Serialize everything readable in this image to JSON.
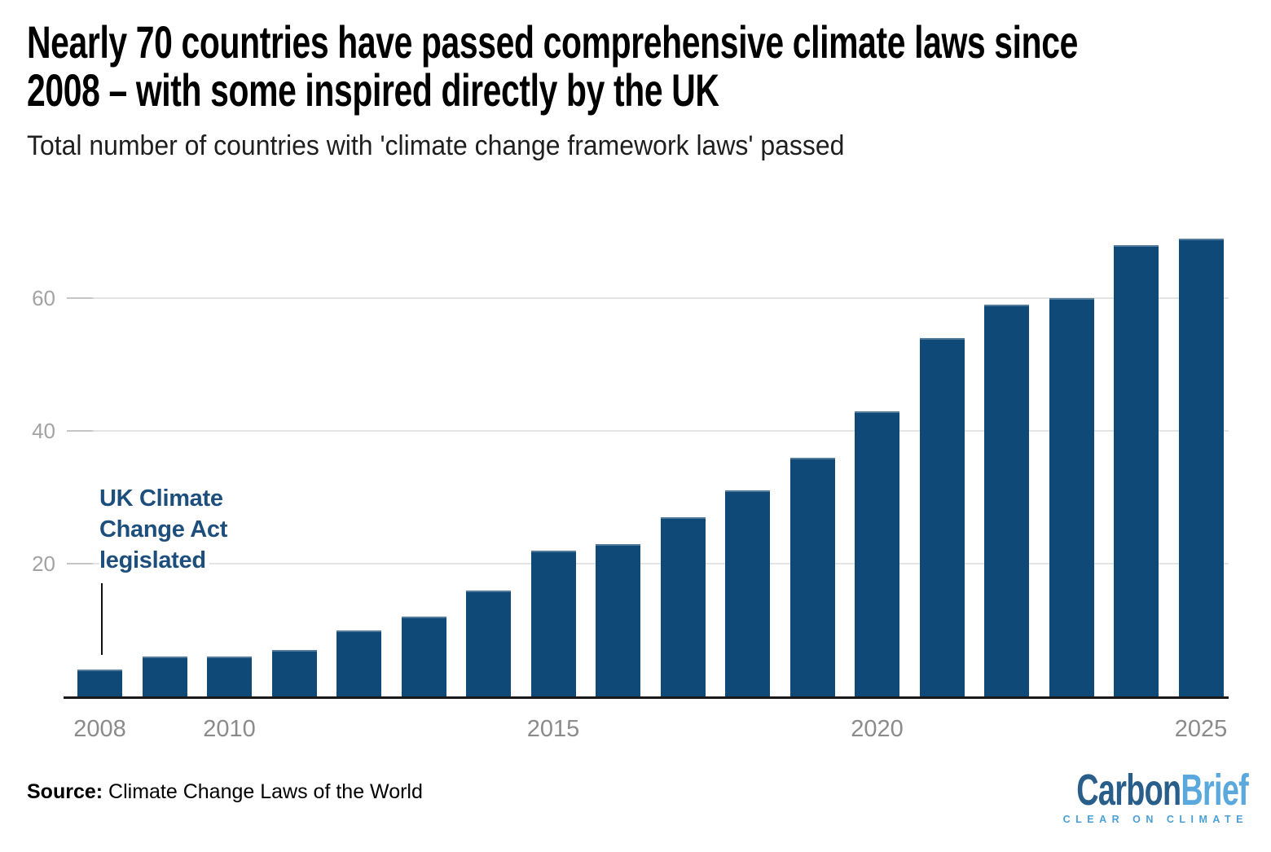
{
  "header": {
    "title": "Nearly 70 countries have passed comprehensive climate laws since 2008 – with some inspired directly by the UK",
    "title_lines": [
      "Nearly 70 countries have passed comprehensive climate laws since",
      "2008 – with some inspired directly by the UK"
    ],
    "subtitle": "Total number of countries with 'climate change framework laws' passed"
  },
  "chart_data": {
    "type": "bar",
    "title": "Total number of countries with 'climate change framework laws' passed",
    "categories": [
      "2008",
      "2009",
      "2010",
      "2011",
      "2012",
      "2013",
      "2014",
      "2015",
      "2016",
      "2017",
      "2018",
      "2019",
      "2020",
      "2021",
      "2022",
      "2023",
      "2024",
      "2025"
    ],
    "values": [
      4,
      6,
      6,
      7,
      10,
      12,
      16,
      22,
      23,
      27,
      31,
      36,
      43,
      54,
      59,
      60,
      68,
      69
    ],
    "xlabel": "",
    "ylabel": "",
    "ylim": [
      0,
      70
    ],
    "yticks": [
      20,
      40,
      60
    ],
    "xtick_labels": [
      "2008",
      "2010",
      "2015",
      "2020",
      "2025"
    ],
    "grid": true,
    "legend": "none",
    "bar_color": "#0f4978",
    "gridline_color": "#e4e4e4",
    "axis_line_color": "#1a1a1a",
    "ytick_label_color": "#a3a3a3",
    "xtick_label_color": "#8b8b8b",
    "annotation": {
      "lines": [
        "UK Climate",
        "Change Act",
        "legislated"
      ],
      "text": "UK Climate Change Act legislated",
      "color": "#1d4e7c",
      "target_year": "2008"
    }
  },
  "footer": {
    "source_label": "Source:",
    "source_text": " Climate Change Laws of the World",
    "logo": {
      "part1": "Carbon",
      "part2": "Brief",
      "tagline": "CLEAR ON CLIMATE",
      "part1_color": "#2a5e8a",
      "part2_color": "#5aa8dc",
      "tagline_color": "#4aa0d4"
    }
  }
}
